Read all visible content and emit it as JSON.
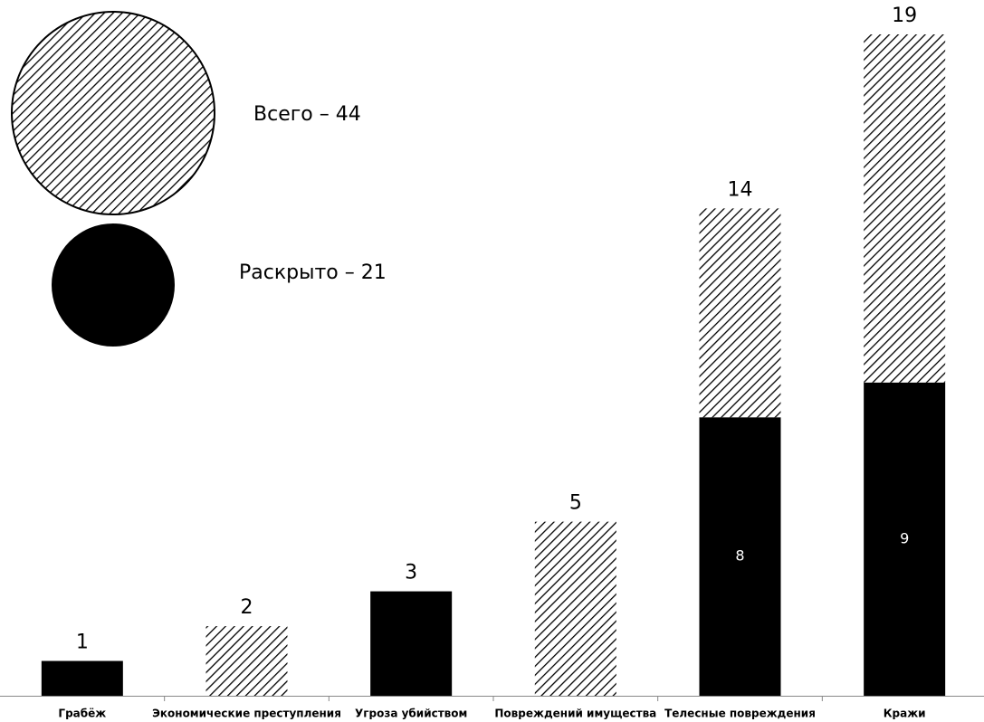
{
  "chart_data": {
    "type": "stacked-bar",
    "categories": [
      "Грабёж",
      "Экономические  преступления",
      "Угроза убийством",
      "Повреждений имущества",
      "Телесные повреждения",
      "Кражи"
    ],
    "series": [
      {
        "name": "Раскрыто – 21",
        "color": "#000000",
        "values": [
          1,
          0,
          3,
          0,
          8,
          9
        ]
      },
      {
        "name": "Всего – 44",
        "color": "hatch",
        "values": [
          0,
          2,
          0,
          5,
          6,
          10
        ]
      }
    ],
    "totals": [
      1,
      2,
      3,
      5,
      14,
      19
    ]
  }
}
